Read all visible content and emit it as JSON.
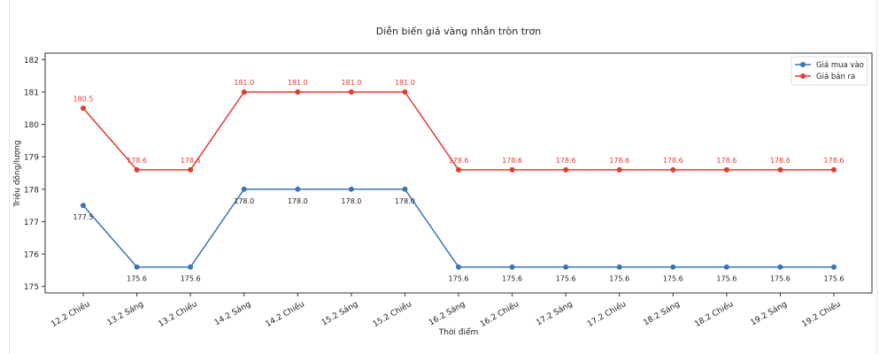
{
  "chart_data": {
    "type": "line",
    "title": "Diễn biến giá vàng nhẫn tròn trơn",
    "xlabel": "Thời điểm",
    "ylabel": "Triệu đồng/lượng",
    "categories": [
      "12.2 Chiều",
      "13.2 Sáng",
      "13.2 Chiều",
      "14.2 Sáng",
      "14.2 Chiều",
      "15.2 Sáng",
      "15.2 Chiều",
      "16.2 Sáng",
      "16.2 Chiều",
      "17.2 Sáng",
      "17.2 Chiều",
      "18.2 Sáng",
      "18.2 Chiều",
      "19.2 Sáng",
      "19.2 Chiều"
    ],
    "series": [
      {
        "name": "Giá mua vào",
        "color": "#3b75af",
        "label_position": "below",
        "values": [
          177.5,
          175.6,
          175.6,
          178.0,
          178.0,
          178.0,
          178.0,
          175.6,
          175.6,
          175.6,
          175.6,
          175.6,
          175.6,
          175.6,
          175.6
        ]
      },
      {
        "name": "Giá bán ra",
        "color": "#e03c31",
        "label_position": "above",
        "values": [
          180.5,
          178.6,
          178.6,
          181.0,
          181.0,
          181.0,
          181.0,
          178.6,
          178.6,
          178.6,
          178.6,
          178.6,
          178.6,
          178.6,
          178.6
        ]
      }
    ],
    "ylim": [
      174.8,
      182.2
    ],
    "yticks": [
      175,
      176,
      177,
      178,
      179,
      180,
      181,
      182
    ],
    "grid": false,
    "legend": "top-right"
  }
}
